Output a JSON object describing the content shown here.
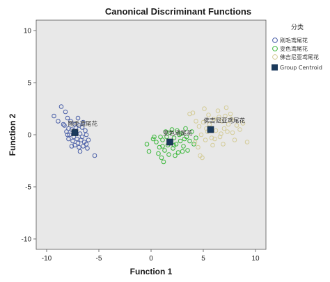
{
  "chart_data": {
    "type": "scatter",
    "title": "Canonical Discriminant Functions",
    "xlabel": "Function 1",
    "ylabel": "Function 2",
    "xlim": [
      -11,
      11
    ],
    "ylim": [
      -11,
      11
    ],
    "xticks": [
      -10,
      -5,
      0,
      5,
      10
    ],
    "yticks": [
      -10,
      -5,
      0,
      5,
      10
    ],
    "grid": false,
    "legend_position": "right",
    "legend_title": "分类",
    "plot_background": "#e8e8e8",
    "series": [
      {
        "name": "刚毛鸢尾花",
        "color": "#4a5fa8",
        "marker": "open-circle",
        "points": [
          [
            -8.6,
            2.7
          ],
          [
            -8.2,
            2.2
          ],
          [
            -9.3,
            1.8
          ],
          [
            -8.9,
            1.3
          ],
          [
            -8.4,
            1.0
          ],
          [
            -8.0,
            1.6
          ],
          [
            -7.7,
            1.3
          ],
          [
            -7.3,
            1.0
          ],
          [
            -6.9,
            0.9
          ],
          [
            -6.6,
            0.7
          ],
          [
            -6.3,
            0.4
          ],
          [
            -7.9,
            0.6
          ],
          [
            -7.6,
            0.5
          ],
          [
            -7.2,
            0.2
          ],
          [
            -6.8,
            0.1
          ],
          [
            -7.4,
            -0.2
          ],
          [
            -7.1,
            -0.4
          ],
          [
            -6.7,
            -0.5
          ],
          [
            -6.4,
            -0.7
          ],
          [
            -7.0,
            -0.8
          ],
          [
            -7.5,
            -0.6
          ],
          [
            -7.8,
            0.0
          ],
          [
            -8.1,
            0.3
          ],
          [
            -7.3,
            -1.0
          ],
          [
            -6.9,
            -1.2
          ],
          [
            -6.5,
            -1.1
          ],
          [
            -6.2,
            -0.9
          ],
          [
            -6.0,
            -0.5
          ],
          [
            -6.1,
            -1.3
          ],
          [
            -5.4,
            -2.0
          ],
          [
            -6.8,
            -1.6
          ],
          [
            -7.6,
            -1.1
          ],
          [
            -8.3,
            0.9
          ],
          [
            -7.0,
            1.6
          ],
          [
            -6.5,
            1.2
          ],
          [
            -6.2,
            0.0
          ],
          [
            -7.9,
            -0.4
          ],
          [
            -7.2,
            0.7
          ],
          [
            -6.6,
            -0.2
          ],
          [
            -8.0,
            0.0
          ]
        ]
      },
      {
        "name": "变色鸢尾花",
        "color": "#3cb83c",
        "marker": "open-circle",
        "points": [
          [
            -0.4,
            -0.9
          ],
          [
            -0.2,
            -1.6
          ],
          [
            0.2,
            -0.4
          ],
          [
            0.5,
            -0.7
          ],
          [
            0.8,
            -1.2
          ],
          [
            1.0,
            -2.2
          ],
          [
            1.1,
            -0.5
          ],
          [
            1.3,
            -1.5
          ],
          [
            1.5,
            -0.2
          ],
          [
            1.6,
            -1.0
          ],
          [
            1.8,
            0.2
          ],
          [
            1.9,
            -0.7
          ],
          [
            2.1,
            -1.3
          ],
          [
            2.2,
            -0.3
          ],
          [
            2.4,
            -0.9
          ],
          [
            2.5,
            0.4
          ],
          [
            2.6,
            -1.7
          ],
          [
            2.8,
            -0.6
          ],
          [
            2.9,
            0.1
          ],
          [
            3.1,
            -1.1
          ],
          [
            3.2,
            -0.4
          ],
          [
            3.4,
            -0.2
          ],
          [
            3.5,
            -1.5
          ],
          [
            3.7,
            -0.6
          ],
          [
            3.9,
            0.3
          ],
          [
            4.1,
            -0.9
          ],
          [
            1.2,
            -2.6
          ],
          [
            0.7,
            -1.8
          ],
          [
            2.0,
            0.5
          ],
          [
            1.4,
            0.3
          ],
          [
            2.3,
            -2.0
          ],
          [
            3.0,
            -1.6
          ],
          [
            0.9,
            -0.2
          ],
          [
            1.7,
            -1.9
          ],
          [
            2.7,
            0.0
          ],
          [
            3.3,
            0.6
          ],
          [
            4.3,
            -0.3
          ],
          [
            2.2,
            -1.0
          ],
          [
            1.1,
            -1.1
          ],
          [
            0.3,
            -0.2
          ]
        ]
      },
      {
        "name": "佛吉尼亚鸢尾花",
        "color": "#d4cc98",
        "marker": "open-circle",
        "points": [
          [
            3.7,
            2.0
          ],
          [
            4.0,
            2.1
          ],
          [
            4.3,
            1.3
          ],
          [
            4.6,
            0.8
          ],
          [
            4.8,
            0.0
          ],
          [
            5.0,
            1.2
          ],
          [
            5.2,
            -0.5
          ],
          [
            5.4,
            0.3
          ],
          [
            5.6,
            1.0
          ],
          [
            5.8,
            -0.3
          ],
          [
            6.0,
            1.5
          ],
          [
            6.2,
            0.4
          ],
          [
            6.4,
            2.3
          ],
          [
            6.6,
            -0.2
          ],
          [
            6.8,
            1.3
          ],
          [
            7.0,
            0.6
          ],
          [
            7.2,
            2.6
          ],
          [
            7.4,
            1.0
          ],
          [
            7.6,
            2.0
          ],
          [
            7.8,
            0.2
          ],
          [
            8.0,
            -0.5
          ],
          [
            8.2,
            0.9
          ],
          [
            8.5,
            0.5
          ],
          [
            9.2,
            -0.7
          ],
          [
            4.5,
            -1.2
          ],
          [
            4.9,
            -2.2
          ],
          [
            5.1,
            2.5
          ],
          [
            5.9,
            -1.0
          ],
          [
            6.5,
            1.7
          ],
          [
            6.9,
            -0.9
          ],
          [
            7.3,
            0.3
          ],
          [
            4.2,
            -0.7
          ],
          [
            5.5,
            1.9
          ],
          [
            6.1,
            -0.4
          ],
          [
            7.7,
            1.5
          ],
          [
            8.8,
            1.1
          ],
          [
            4.7,
            -2.0
          ],
          [
            5.3,
            0.6
          ],
          [
            6.7,
            0.1
          ],
          [
            7.1,
            1.8
          ]
        ]
      }
    ],
    "centroids": {
      "name": "Group Centroid",
      "color": "#1b3a5c",
      "points": [
        {
          "group": "刚毛鸢尾花",
          "x": -7.3,
          "y": 0.2
        },
        {
          "group": "变色鸢尾花",
          "x": 1.8,
          "y": -0.7
        },
        {
          "group": "佛吉尼亚鸢尾花",
          "x": 5.7,
          "y": 0.5
        }
      ]
    }
  }
}
